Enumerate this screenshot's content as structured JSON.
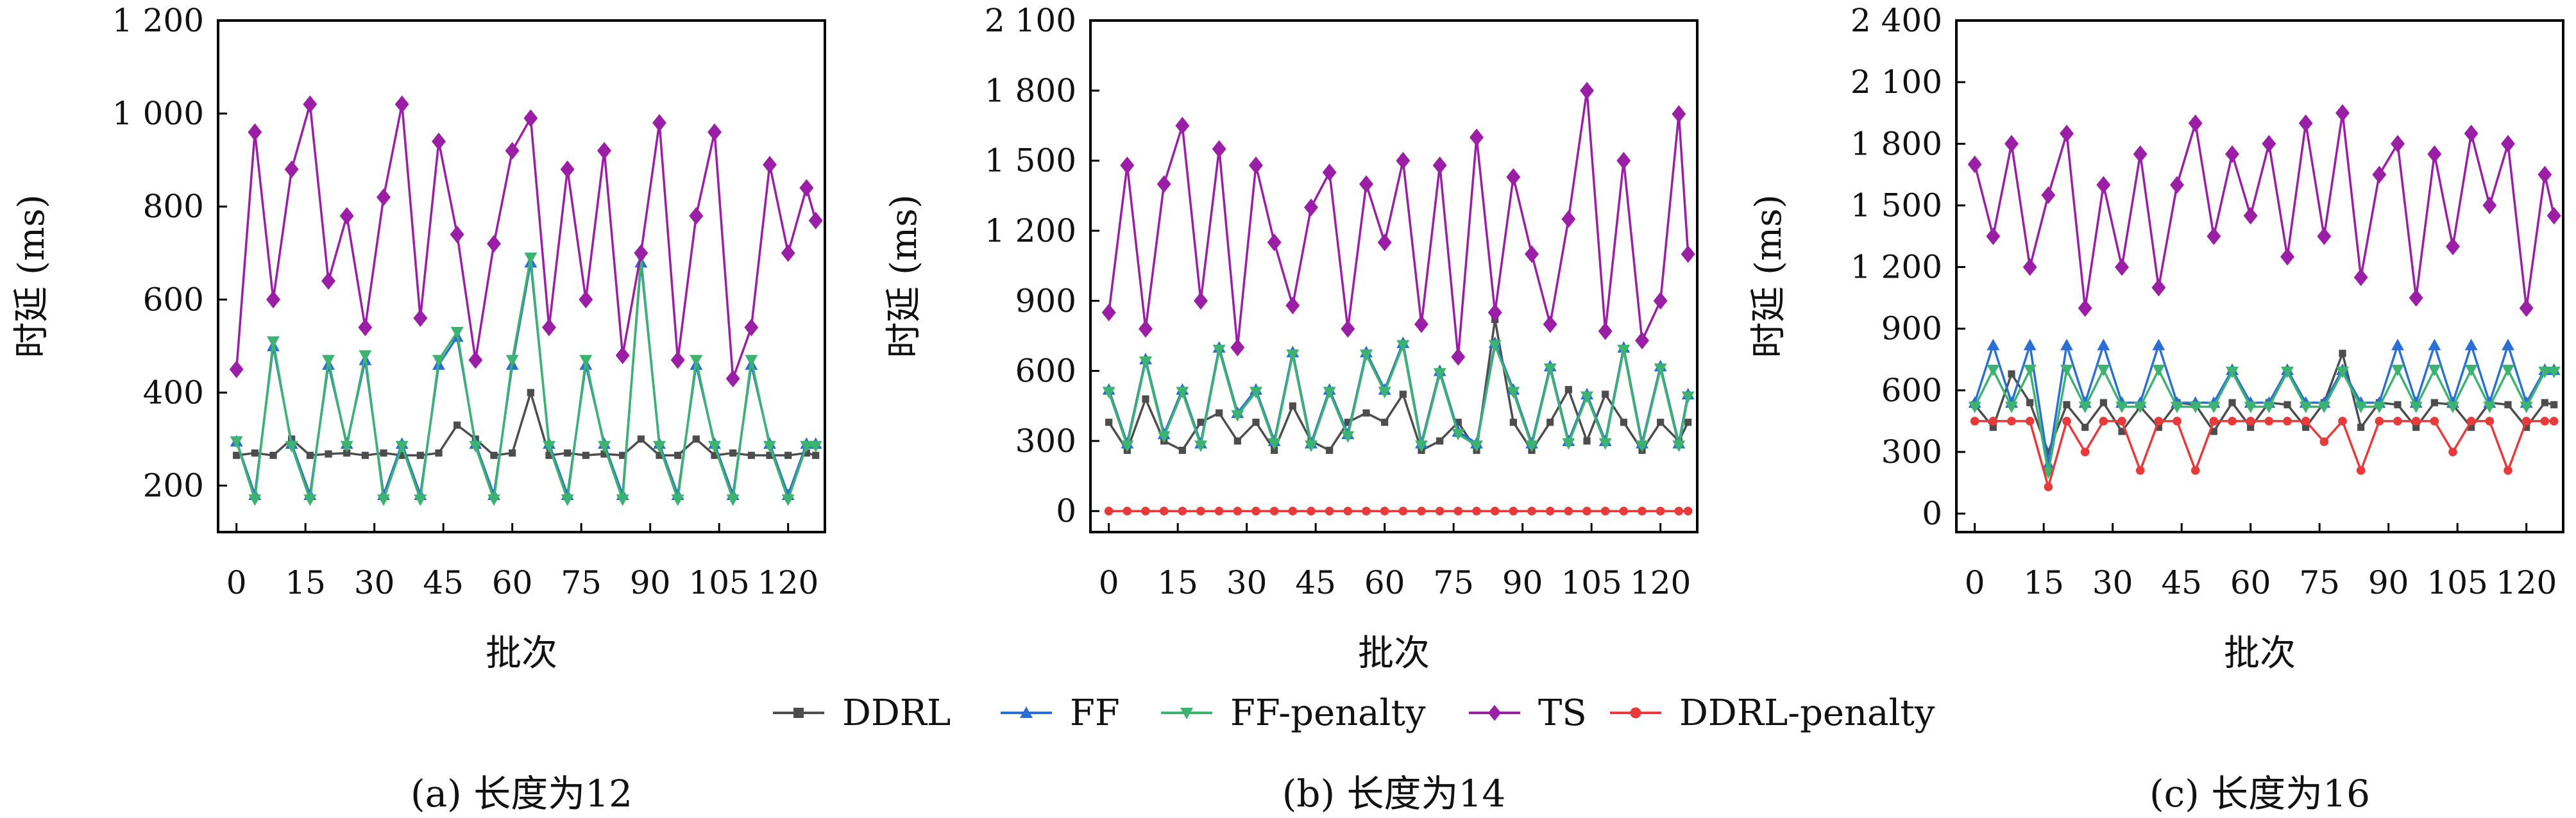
{
  "legend": [
    {
      "name": "DDRL",
      "color": "#4d4d4d",
      "marker": "square"
    },
    {
      "name": "FF",
      "color": "#2a6fd6",
      "marker": "triangle-up"
    },
    {
      "name": "FF-penalty",
      "color": "#3cb371",
      "marker": "triangle-down"
    },
    {
      "name": "TS",
      "color": "#9b1fa6",
      "marker": "diamond"
    },
    {
      "name": "DDRL-penalty",
      "color": "#e83a3a",
      "marker": "circle"
    }
  ],
  "chart_data": [
    {
      "type": "line",
      "caption": "(a) 长度为12",
      "xlabel": "批次",
      "ylabel": "时延 (ms)",
      "xlim": [
        -4,
        128
      ],
      "ylim": [
        100,
        1200
      ],
      "xticks": [
        0,
        15,
        30,
        45,
        60,
        75,
        90,
        105,
        120
      ],
      "xtick_labels": [
        "0",
        "15",
        "30",
        "45",
        "60",
        "75",
        "90",
        "105",
        "120"
      ],
      "yticks": [
        200,
        400,
        600,
        800,
        1000,
        1200
      ],
      "ytick_labels": [
        "200",
        "400",
        "600",
        "800",
        "1 000",
        "1 200"
      ],
      "x": [
        0,
        4,
        8,
        12,
        16,
        20,
        24,
        28,
        32,
        36,
        40,
        44,
        48,
        52,
        56,
        60,
        64,
        68,
        72,
        76,
        80,
        84,
        88,
        92,
        96,
        100,
        104,
        108,
        112,
        116,
        120,
        124,
        126
      ],
      "series": [
        {
          "name": "DDRL",
          "values": [
            265,
            270,
            265,
            300,
            265,
            268,
            270,
            265,
            270,
            265,
            265,
            270,
            330,
            300,
            265,
            270,
            400,
            265,
            270,
            265,
            268,
            265,
            300,
            265,
            265,
            300,
            265,
            270,
            265,
            265,
            265,
            270,
            265
          ]
        },
        {
          "name": "FF",
          "values": [
            295,
            180,
            500,
            290,
            180,
            460,
            290,
            470,
            180,
            290,
            180,
            460,
            520,
            290,
            180,
            460,
            680,
            290,
            180,
            460,
            290,
            180,
            680,
            290,
            180,
            460,
            290,
            180,
            460,
            290,
            180,
            290,
            290
          ]
        },
        {
          "name": "FF-penalty",
          "values": [
            295,
            170,
            510,
            285,
            170,
            470,
            285,
            480,
            170,
            285,
            170,
            470,
            530,
            285,
            170,
            470,
            690,
            285,
            170,
            470,
            285,
            170,
            690,
            285,
            170,
            470,
            285,
            170,
            470,
            285,
            170,
            285,
            285
          ]
        },
        {
          "name": "TS",
          "values": [
            450,
            960,
            600,
            880,
            1020,
            640,
            780,
            540,
            820,
            1020,
            560,
            940,
            740,
            470,
            720,
            920,
            990,
            540,
            880,
            600,
            920,
            480,
            700,
            980,
            470,
            780,
            960,
            430,
            540,
            890,
            700,
            840,
            770
          ]
        }
      ]
    },
    {
      "type": "line",
      "caption": "(b) 长度为14",
      "xlabel": "批次",
      "ylabel": "时延 (ms)",
      "xlim": [
        -4,
        128
      ],
      "ylim": [
        -90,
        2100
      ],
      "xticks": [
        0,
        15,
        30,
        45,
        60,
        75,
        90,
        105,
        120
      ],
      "xtick_labels": [
        "0",
        "15",
        "30",
        "45",
        "60",
        "75",
        "90",
        "105",
        "120"
      ],
      "yticks": [
        0,
        300,
        600,
        900,
        1200,
        1500,
        1800,
        2100
      ],
      "ytick_labels": [
        "0",
        "300",
        "600",
        "900",
        "1 200",
        "1 500",
        "1 800",
        "2 100"
      ],
      "x": [
        0,
        4,
        8,
        12,
        16,
        20,
        24,
        28,
        32,
        36,
        40,
        44,
        48,
        52,
        56,
        60,
        64,
        68,
        72,
        76,
        80,
        84,
        88,
        92,
        96,
        100,
        104,
        108,
        112,
        116,
        120,
        124,
        126
      ],
      "series": [
        {
          "name": "DDRL",
          "values": [
            380,
            260,
            480,
            300,
            260,
            380,
            420,
            300,
            380,
            260,
            450,
            300,
            260,
            380,
            420,
            380,
            500,
            260,
            300,
            380,
            260,
            820,
            380,
            260,
            380,
            520,
            300,
            500,
            380,
            260,
            380,
            300,
            380
          ]
        },
        {
          "name": "FF",
          "values": [
            520,
            290,
            650,
            330,
            520,
            290,
            700,
            420,
            520,
            300,
            680,
            290,
            520,
            330,
            680,
            520,
            720,
            290,
            600,
            340,
            290,
            720,
            520,
            290,
            620,
            300,
            500,
            300,
            700,
            290,
            620,
            290,
            500
          ]
        },
        {
          "name": "FF-penalty",
          "values": [
            510,
            280,
            640,
            320,
            510,
            280,
            690,
            410,
            510,
            290,
            670,
            280,
            510,
            320,
            670,
            510,
            710,
            280,
            590,
            330,
            280,
            710,
            510,
            280,
            610,
            290,
            490,
            290,
            690,
            280,
            610,
            280,
            490
          ]
        },
        {
          "name": "TS",
          "values": [
            850,
            1480,
            780,
            1400,
            1650,
            900,
            1550,
            700,
            1480,
            1150,
            880,
            1300,
            1450,
            780,
            1400,
            1150,
            1500,
            800,
            1480,
            660,
            1600,
            850,
            1430,
            1100,
            800,
            1250,
            1800,
            770,
            1500,
            730,
            900,
            1700,
            1100
          ]
        },
        {
          "name": "DDRL-penalty",
          "values": [
            0,
            0,
            0,
            0,
            0,
            0,
            0,
            0,
            0,
            0,
            0,
            0,
            0,
            0,
            0,
            0,
            0,
            0,
            0,
            0,
            0,
            0,
            0,
            0,
            0,
            0,
            0,
            0,
            0,
            0,
            0,
            0,
            0
          ]
        }
      ]
    },
    {
      "type": "line",
      "caption": "(c) 长度为16",
      "xlabel": "批次",
      "ylabel": "时延 (ms)",
      "xlim": [
        -4,
        128
      ],
      "ylim": [
        -90,
        2400
      ],
      "xticks": [
        0,
        15,
        30,
        45,
        60,
        75,
        90,
        105,
        120
      ],
      "xtick_labels": [
        "0",
        "15",
        "30",
        "45",
        "60",
        "75",
        "90",
        "105",
        "120"
      ],
      "yticks": [
        0,
        300,
        600,
        900,
        1200,
        1500,
        1800,
        2100,
        2400
      ],
      "ytick_labels": [
        "0",
        "300",
        "600",
        "900",
        "1 200",
        "1 500",
        "1 800",
        "2 100",
        "2 400"
      ],
      "x": [
        0,
        4,
        8,
        12,
        16,
        20,
        24,
        28,
        32,
        36,
        40,
        44,
        48,
        52,
        56,
        60,
        64,
        68,
        72,
        76,
        80,
        84,
        88,
        92,
        96,
        100,
        104,
        108,
        112,
        116,
        120,
        124,
        126
      ],
      "series": [
        {
          "name": "DDRL",
          "values": [
            530,
            420,
            680,
            540,
            300,
            530,
            420,
            540,
            400,
            520,
            420,
            540,
            530,
            400,
            540,
            420,
            540,
            530,
            420,
            540,
            780,
            420,
            540,
            530,
            420,
            540,
            530,
            420,
            540,
            530,
            420,
            540,
            530
          ]
        },
        {
          "name": "FF",
          "values": [
            540,
            820,
            540,
            820,
            240,
            820,
            540,
            820,
            540,
            540,
            820,
            540,
            540,
            540,
            700,
            540,
            540,
            700,
            540,
            540,
            700,
            540,
            540,
            820,
            540,
            820,
            540,
            820,
            540,
            820,
            540,
            700,
            700
          ]
        },
        {
          "name": "FF-penalty",
          "values": [
            520,
            700,
            520,
            700,
            200,
            700,
            520,
            700,
            520,
            520,
            700,
            520,
            520,
            520,
            690,
            520,
            520,
            690,
            520,
            520,
            690,
            520,
            520,
            700,
            520,
            700,
            520,
            700,
            520,
            700,
            520,
            690,
            690
          ]
        },
        {
          "name": "TS",
          "values": [
            1700,
            1350,
            1800,
            1200,
            1550,
            1850,
            1000,
            1600,
            1200,
            1750,
            1100,
            1600,
            1900,
            1350,
            1750,
            1450,
            1800,
            1250,
            1900,
            1350,
            1950,
            1150,
            1650,
            1800,
            1050,
            1750,
            1300,
            1850,
            1500,
            1800,
            1000,
            1650,
            1450
          ]
        },
        {
          "name": "DDRL-penalty",
          "values": [
            450,
            450,
            450,
            450,
            130,
            450,
            300,
            450,
            450,
            210,
            450,
            450,
            210,
            450,
            450,
            450,
            450,
            450,
            450,
            350,
            450,
            210,
            450,
            450,
            450,
            450,
            300,
            450,
            450,
            210,
            450,
            450,
            450
          ]
        }
      ]
    }
  ]
}
